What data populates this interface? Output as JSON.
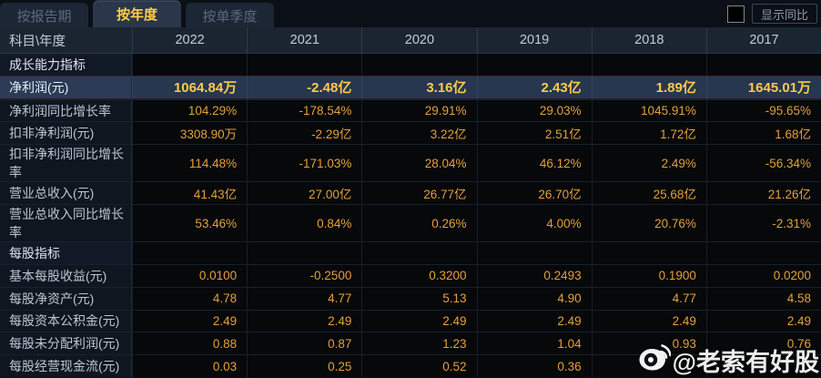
{
  "colors": {
    "accent_gold": "#ffd043",
    "value_orange": "#e3a03d",
    "highlight_value_gold": "#ffc94d",
    "highlight_row_bg": "#273750",
    "tab_bg": "#1c2634",
    "active_tab_bg": "#2a3649",
    "header_bg": "#1b2532",
    "cell_bg": "#060809",
    "page_bg": "#0b0f16"
  },
  "tabs": [
    {
      "label": "按报告期",
      "active": false
    },
    {
      "label": "按年度",
      "active": true
    },
    {
      "label": "按单季度",
      "active": false
    }
  ],
  "controls": {
    "compare_checkbox_checked": false,
    "compare_label": "显示同比"
  },
  "table": {
    "corner_header": "科目\\年度",
    "year_columns": [
      "2022",
      "2021",
      "2020",
      "2019",
      "2018",
      "2017"
    ],
    "more_columns_icon": "»",
    "rows": [
      {
        "type": "section",
        "label": "成长能力指标",
        "values": [
          "",
          "",
          "",
          "",
          "",
          ""
        ],
        "highlight": false
      },
      {
        "type": "data",
        "label": "净利润(元)",
        "values": [
          "1064.84万",
          "-2.48亿",
          "3.16亿",
          "2.43亿",
          "1.89亿",
          "1645.01万"
        ],
        "highlight": true
      },
      {
        "type": "data",
        "label": "净利润同比增长率",
        "values": [
          "104.29%",
          "-178.54%",
          "29.91%",
          "29.03%",
          "1045.91%",
          "-95.65%"
        ],
        "highlight": false
      },
      {
        "type": "data",
        "label": "扣非净利润(元)",
        "values": [
          "3308.90万",
          "-2.29亿",
          "3.22亿",
          "2.51亿",
          "1.72亿",
          "1.68亿"
        ],
        "highlight": false
      },
      {
        "type": "data",
        "label": "扣非净利润同比增长率",
        "values": [
          "114.48%",
          "-171.03%",
          "28.04%",
          "46.12%",
          "2.49%",
          "-56.34%"
        ],
        "highlight": false
      },
      {
        "type": "data",
        "label": "营业总收入(元)",
        "values": [
          "41.43亿",
          "27.00亿",
          "26.77亿",
          "26.70亿",
          "25.68亿",
          "21.26亿"
        ],
        "highlight": false
      },
      {
        "type": "data",
        "label": "营业总收入同比增长率",
        "values": [
          "53.46%",
          "0.84%",
          "0.26%",
          "4.00%",
          "20.76%",
          "-2.31%"
        ],
        "highlight": false
      },
      {
        "type": "section",
        "label": "每股指标",
        "values": [
          "",
          "",
          "",
          "",
          "",
          ""
        ],
        "highlight": false
      },
      {
        "type": "data",
        "label": "基本每股收益(元)",
        "values": [
          "0.0100",
          "-0.2500",
          "0.3200",
          "0.2493",
          "0.1900",
          "0.0200"
        ],
        "highlight": false
      },
      {
        "type": "data",
        "label": "每股净资产(元)",
        "values": [
          "4.78",
          "4.77",
          "5.13",
          "4.90",
          "4.77",
          "4.58"
        ],
        "highlight": false
      },
      {
        "type": "data",
        "label": "每股资本公积金(元)",
        "values": [
          "2.49",
          "2.49",
          "2.49",
          "2.49",
          "2.49",
          "2.49"
        ],
        "highlight": false
      },
      {
        "type": "data",
        "label": "每股未分配利润(元)",
        "values": [
          "0.88",
          "0.87",
          "1.23",
          "1.04",
          "0.93",
          "0.76"
        ],
        "highlight": false
      },
      {
        "type": "data",
        "label": "每股经营现金流(元)",
        "values": [
          "0.03",
          "0.25",
          "0.52",
          "0.36",
          "",
          ""
        ],
        "highlight": false
      }
    ]
  },
  "watermark": {
    "icon": "weibo-icon",
    "handle": "@老索有好股"
  }
}
